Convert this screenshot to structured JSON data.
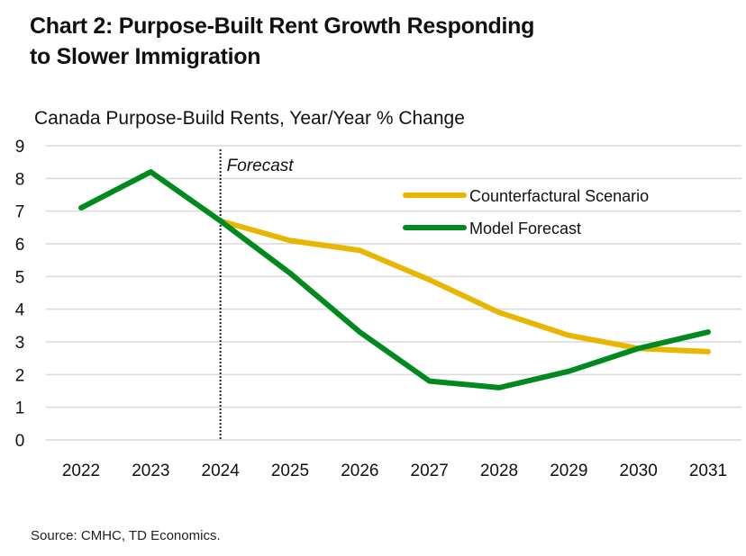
{
  "title": "Chart 2: Purpose-Built Rent Growth Responding to Slower Immigration",
  "title_line1": "Chart 2: Purpose-Built Rent Growth Responding",
  "title_line2": "to Slower Immigration",
  "subtitle": "Canada Purpose-Build Rents, Year/Year % Change",
  "source": "Source: CMHC, TD Economics.",
  "annotation": "Forecast",
  "colors": {
    "counterfactual": "#E8B500",
    "model": "#008A1E",
    "grid": "#D9D9D9"
  },
  "chart_data": {
    "type": "line",
    "title": "Chart 2: Purpose-Built Rent Growth Responding to Slower Immigration",
    "subtitle": "Canada Purpose-Build Rents, Year/Year % Change",
    "xlabel": "",
    "ylabel": "Year/Year % Change",
    "categories": [
      "2022",
      "2023",
      "2024",
      "2025",
      "2026",
      "2027",
      "2028",
      "2029",
      "2030",
      "2031"
    ],
    "series": [
      {
        "name": "Counterfactural Scenario",
        "color": "#E8B500",
        "values": [
          null,
          null,
          6.7,
          6.1,
          5.8,
          4.9,
          3.9,
          3.2,
          2.8,
          2.7
        ]
      },
      {
        "name": "Model Forecast",
        "color": "#008A1E",
        "values": [
          7.1,
          8.2,
          6.7,
          5.1,
          3.3,
          1.8,
          1.6,
          2.1,
          2.8,
          3.3
        ]
      }
    ],
    "ylim": [
      0,
      9
    ],
    "yticks": [
      0,
      1,
      2,
      3,
      4,
      5,
      6,
      7,
      8,
      9
    ],
    "grid": true,
    "legend_position": "upper right (inside plot)",
    "annotations": [
      {
        "text": "Forecast",
        "x": "2024",
        "style": "dotted vertical line"
      }
    ],
    "source": "Source: CMHC, TD Economics."
  }
}
